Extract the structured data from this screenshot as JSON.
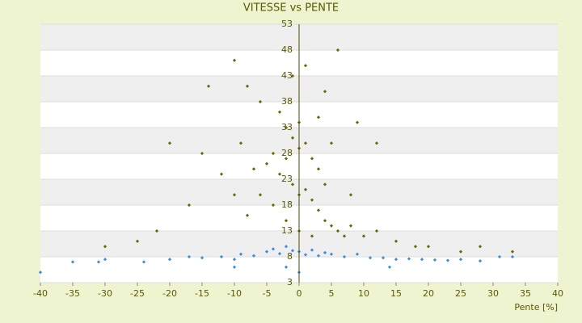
{
  "chart_data": {
    "type": "scatter",
    "title": "VITESSE vs PENTE",
    "x_label": "Pente [%]",
    "xlim": [
      -40,
      40
    ],
    "xticks": [
      -40,
      -35,
      -30,
      -25,
      -20,
      -15,
      -10,
      -5,
      0,
      5,
      10,
      15,
      20,
      25,
      30,
      35,
      40
    ],
    "ylim": [
      3,
      53
    ],
    "yticks": [
      3,
      8,
      13,
      18,
      23,
      28,
      33,
      38,
      43,
      48,
      53
    ],
    "grid": true,
    "series": [
      {
        "color": "#6b6b00",
        "x": [
          -14,
          -10,
          -8,
          -6,
          -3,
          -2,
          -1,
          0,
          1,
          2,
          3,
          -4,
          -5,
          -3,
          -1,
          0,
          1,
          2,
          3,
          4,
          5,
          6,
          7,
          8,
          10,
          12,
          15,
          18,
          20,
          25,
          28,
          33,
          -20,
          -15,
          -12,
          -17,
          -22,
          -25,
          -30,
          -10,
          -8,
          -7,
          -9,
          -6,
          -4,
          -2,
          0,
          2,
          4,
          6,
          9,
          12,
          8,
          5,
          3,
          -1,
          1,
          -2,
          0,
          4
        ],
        "values": [
          41,
          46,
          41,
          38,
          36,
          33,
          31,
          29,
          30,
          27,
          25,
          28,
          26,
          24,
          22,
          20,
          21,
          19,
          17,
          15,
          14,
          13,
          12,
          14,
          12,
          13,
          11,
          10,
          10,
          9,
          10,
          9,
          30,
          28,
          24,
          18,
          13,
          11,
          10,
          20,
          16,
          25,
          30,
          20,
          18,
          15,
          13,
          12,
          22,
          48,
          34,
          30,
          20,
          30,
          35,
          43,
          45,
          27,
          34,
          40
        ]
      },
      {
        "color": "#3a8ee6",
        "x": [
          -40,
          -35,
          -31,
          -30,
          -24,
          -20,
          -17,
          -15,
          -12,
          -10,
          -9,
          -7,
          -5,
          -4,
          -3,
          -2,
          -1,
          0,
          1,
          2,
          3,
          4,
          5,
          7,
          9,
          11,
          13,
          15,
          17,
          19,
          21,
          23,
          25,
          28,
          31,
          33,
          0,
          -2,
          -10,
          14
        ],
        "values": [
          5,
          7,
          7,
          7.5,
          7,
          7.5,
          8,
          7.8,
          8,
          7.5,
          8.5,
          8.2,
          9,
          9.5,
          8.6,
          10,
          9.2,
          9,
          8.4,
          9.3,
          8.2,
          8.8,
          8.5,
          8,
          8.5,
          7.8,
          7.8,
          7.5,
          7.6,
          7.5,
          7.4,
          7.3,
          7.5,
          7.2,
          8,
          8,
          5,
          6,
          6,
          6
        ]
      }
    ]
  }
}
